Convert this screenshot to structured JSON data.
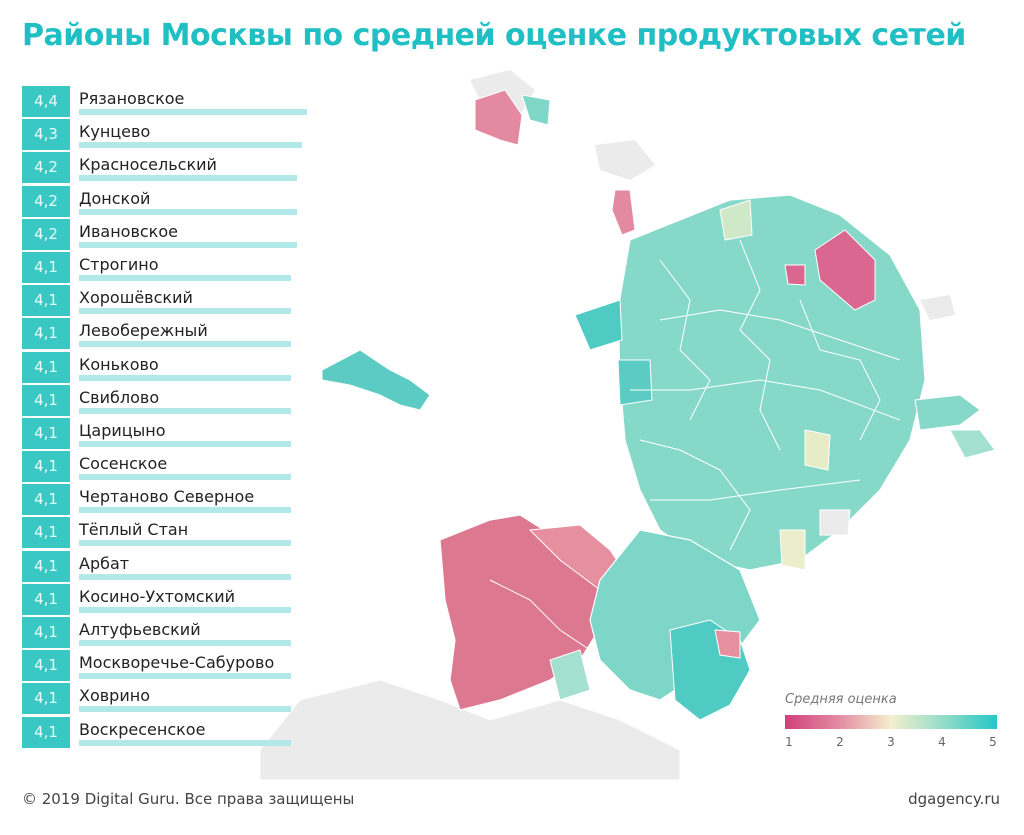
{
  "title": "Районы Москвы по средней оценке продуктовых сетей",
  "ranking": [
    {
      "score": "4,4",
      "value": 4.4,
      "name": "Рязановское"
    },
    {
      "score": "4,3",
      "value": 4.3,
      "name": "Кунцево"
    },
    {
      "score": "4,2",
      "value": 4.2,
      "name": "Красносельский"
    },
    {
      "score": "4,2",
      "value": 4.2,
      "name": "Донской"
    },
    {
      "score": "4,2",
      "value": 4.2,
      "name": "Ивановское"
    },
    {
      "score": "4,1",
      "value": 4.1,
      "name": "Строгино"
    },
    {
      "score": "4,1",
      "value": 4.1,
      "name": "Хорошёвский"
    },
    {
      "score": "4,1",
      "value": 4.1,
      "name": "Левобережный"
    },
    {
      "score": "4,1",
      "value": 4.1,
      "name": "Коньково"
    },
    {
      "score": "4,1",
      "value": 4.1,
      "name": "Свиблово"
    },
    {
      "score": "4,1",
      "value": 4.1,
      "name": "Царицыно"
    },
    {
      "score": "4,1",
      "value": 4.1,
      "name": "Сосенское"
    },
    {
      "score": "4,1",
      "value": 4.1,
      "name": "Чертаново Северное"
    },
    {
      "score": "4,1",
      "value": 4.1,
      "name": "Тёплый Стан"
    },
    {
      "score": "4,1",
      "value": 4.1,
      "name": "Арбат"
    },
    {
      "score": "4,1",
      "value": 4.1,
      "name": "Косино-Ухтомский"
    },
    {
      "score": "4,1",
      "value": 4.1,
      "name": "Алтуфьевский"
    },
    {
      "score": "4,1",
      "value": 4.1,
      "name": "Москворечье-Сабурово"
    },
    {
      "score": "4,1",
      "value": 4.1,
      "name": "Ховрино"
    },
    {
      "score": "4,1",
      "value": 4.1,
      "name": "Воскресенское"
    }
  ],
  "legend": {
    "title": "Средняя оценка",
    "ticks": [
      "1",
      "2",
      "3",
      "4",
      "5"
    ],
    "colors": [
      "#d13f7c",
      "#e38aa1",
      "#f4efcd",
      "#92dcc8",
      "#25c7c6"
    ]
  },
  "footer": {
    "copyright": "© 2019 Digital Guru. Все права защищены",
    "site": "dgagency.ru"
  }
}
